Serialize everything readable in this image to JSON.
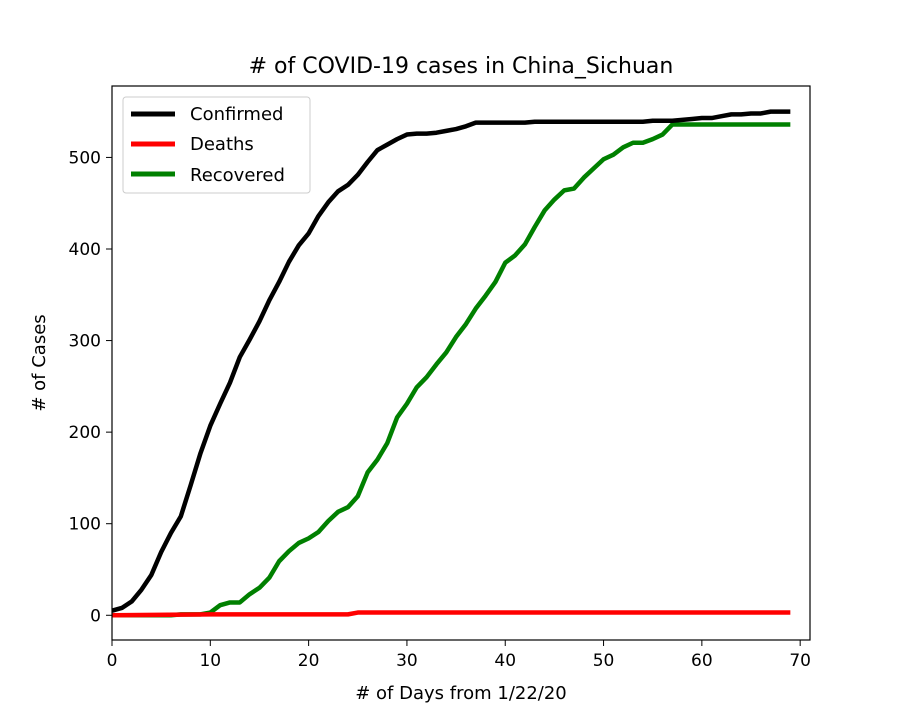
{
  "chart_data": {
    "type": "line",
    "title": "# of COVID-19 cases in China_Sichuan",
    "xlabel": "# of Days from 1/22/20",
    "ylabel": "# of Cases",
    "xlim": [
      0,
      71
    ],
    "ylim": [
      -27,
      578
    ],
    "xticks": [
      0,
      10,
      20,
      30,
      40,
      50,
      60,
      70
    ],
    "yticks": [
      0,
      100,
      200,
      300,
      400,
      500
    ],
    "grid": false,
    "legend_position": "top-left",
    "series": [
      {
        "name": "Confirmed",
        "color": "#000000",
        "points": [
          [
            0,
            5
          ],
          [
            1,
            8
          ],
          [
            2,
            15
          ],
          [
            3,
            28
          ],
          [
            4,
            44
          ],
          [
            5,
            69
          ],
          [
            6,
            90
          ],
          [
            7,
            108
          ],
          [
            8,
            142
          ],
          [
            9,
            177
          ],
          [
            10,
            207
          ],
          [
            11,
            231
          ],
          [
            12,
            254
          ],
          [
            13,
            282
          ],
          [
            14,
            301
          ],
          [
            15,
            321
          ],
          [
            16,
            344
          ],
          [
            17,
            364
          ],
          [
            18,
            386
          ],
          [
            19,
            404
          ],
          [
            20,
            417
          ],
          [
            21,
            436
          ],
          [
            22,
            451
          ],
          [
            23,
            463
          ],
          [
            24,
            470
          ],
          [
            25,
            481
          ],
          [
            26,
            495
          ],
          [
            27,
            508
          ],
          [
            28,
            514
          ],
          [
            29,
            520
          ],
          [
            30,
            525
          ],
          [
            31,
            526
          ],
          [
            32,
            526
          ],
          [
            33,
            527
          ],
          [
            34,
            529
          ],
          [
            35,
            531
          ],
          [
            36,
            534
          ],
          [
            37,
            538
          ],
          [
            38,
            538
          ],
          [
            39,
            538
          ],
          [
            40,
            538
          ],
          [
            41,
            538
          ],
          [
            42,
            538
          ],
          [
            43,
            539
          ],
          [
            44,
            539
          ],
          [
            45,
            539
          ],
          [
            46,
            539
          ],
          [
            47,
            539
          ],
          [
            48,
            539
          ],
          [
            49,
            539
          ],
          [
            50,
            539
          ],
          [
            51,
            539
          ],
          [
            52,
            539
          ],
          [
            53,
            539
          ],
          [
            54,
            539
          ],
          [
            55,
            540
          ],
          [
            56,
            540
          ],
          [
            57,
            540
          ],
          [
            58,
            541
          ],
          [
            59,
            542
          ],
          [
            60,
            543
          ],
          [
            61,
            543
          ],
          [
            62,
            545
          ],
          [
            63,
            547
          ],
          [
            64,
            547
          ],
          [
            65,
            548
          ],
          [
            66,
            548
          ],
          [
            67,
            550
          ],
          [
            68,
            550
          ],
          [
            69,
            550
          ]
        ]
      },
      {
        "name": "Deaths",
        "color": "#ff0000",
        "points": [
          [
            0,
            0
          ],
          [
            10,
            1
          ],
          [
            24,
            1
          ],
          [
            25,
            3
          ],
          [
            69,
            3
          ]
        ]
      },
      {
        "name": "Recovered",
        "color": "#008000",
        "points": [
          [
            0,
            0
          ],
          [
            6,
            0
          ],
          [
            7,
            1
          ],
          [
            9,
            1
          ],
          [
            10,
            3
          ],
          [
            11,
            11
          ],
          [
            12,
            14
          ],
          [
            13,
            14
          ],
          [
            14,
            23
          ],
          [
            15,
            30
          ],
          [
            16,
            41
          ],
          [
            17,
            59
          ],
          [
            18,
            70
          ],
          [
            19,
            79
          ],
          [
            20,
            84
          ],
          [
            21,
            91
          ],
          [
            22,
            103
          ],
          [
            23,
            113
          ],
          [
            24,
            118
          ],
          [
            25,
            130
          ],
          [
            26,
            156
          ],
          [
            27,
            170
          ],
          [
            28,
            188
          ],
          [
            29,
            216
          ],
          [
            30,
            231
          ],
          [
            31,
            249
          ],
          [
            32,
            260
          ],
          [
            33,
            274
          ],
          [
            34,
            287
          ],
          [
            35,
            304
          ],
          [
            36,
            318
          ],
          [
            37,
            335
          ],
          [
            38,
            349
          ],
          [
            39,
            364
          ],
          [
            40,
            385
          ],
          [
            41,
            393
          ],
          [
            42,
            405
          ],
          [
            43,
            424
          ],
          [
            44,
            442
          ],
          [
            45,
            454
          ],
          [
            46,
            464
          ],
          [
            47,
            466
          ],
          [
            48,
            478
          ],
          [
            49,
            488
          ],
          [
            50,
            498
          ],
          [
            51,
            503
          ],
          [
            52,
            511
          ],
          [
            53,
            516
          ],
          [
            54,
            516
          ],
          [
            55,
            520
          ],
          [
            56,
            525
          ],
          [
            57,
            536
          ],
          [
            69,
            536
          ]
        ]
      }
    ]
  }
}
